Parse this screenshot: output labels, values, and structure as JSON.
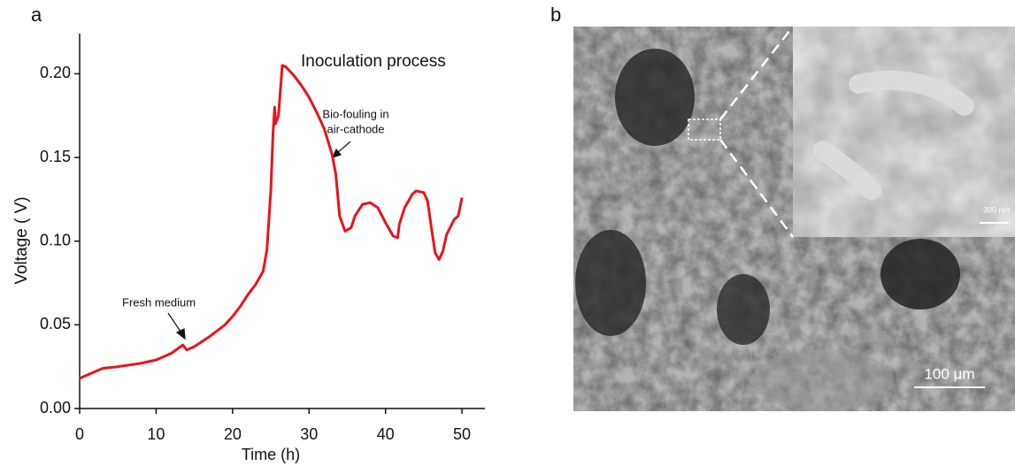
{
  "chart_data": {
    "type": "line",
    "panel_label": "a",
    "x_label": "Time (h)",
    "y_label": "Voltage ( V)",
    "annotations": [
      "Inoculation process",
      "Fresh medium",
      "Bio-fouling in",
      "air-cathode"
    ],
    "color": "#e8141a",
    "x": [
      0,
      1,
      3,
      5,
      8,
      10,
      12,
      13.5,
      14,
      15,
      17,
      19,
      20,
      21,
      22,
      23,
      24,
      24.5,
      25,
      25.3,
      25.5,
      25.6,
      26,
      26.5,
      27,
      28,
      29,
      30,
      31,
      32,
      33,
      33.5,
      34,
      34.7,
      35.5,
      36,
      37,
      38,
      39,
      40,
      41,
      41.6,
      41.8,
      42.5,
      43.5,
      44,
      45,
      45.5,
      46,
      46.5,
      47,
      47.5,
      48,
      49,
      49.5,
      50
    ],
    "values": [
      0.018,
      0.02,
      0.024,
      0.025,
      0.027,
      0.029,
      0.033,
      0.038,
      0.035,
      0.037,
      0.043,
      0.05,
      0.055,
      0.061,
      0.068,
      0.074,
      0.082,
      0.095,
      0.13,
      0.165,
      0.18,
      0.17,
      0.175,
      0.205,
      0.204,
      0.199,
      0.193,
      0.186,
      0.177,
      0.167,
      0.152,
      0.14,
      0.115,
      0.106,
      0.108,
      0.115,
      0.122,
      0.123,
      0.12,
      0.111,
      0.103,
      0.102,
      0.11,
      0.12,
      0.128,
      0.13,
      0.129,
      0.124,
      0.108,
      0.093,
      0.089,
      0.094,
      0.104,
      0.113,
      0.115,
      0.126
    ],
    "xlim": [
      0,
      53
    ],
    "ylim": [
      0,
      0.224
    ],
    "xticks": [
      0,
      10,
      20,
      30,
      40,
      50
    ],
    "yticks": [
      {
        "value": 0,
        "label": "0.00"
      },
      0.05,
      {
        "value": 0.1,
        "label": "0.10"
      },
      0.15,
      {
        "value": 0.2,
        "label": "0.20"
      }
    ]
  },
  "image_panel": {
    "panel_label": "b",
    "scale_bar": "100 μm",
    "inset_scale_bar": "300 nm"
  }
}
